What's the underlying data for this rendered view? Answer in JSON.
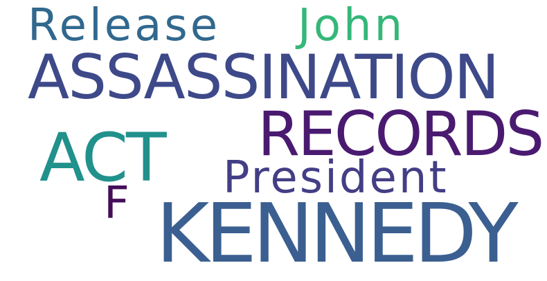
{
  "word_cloud": {
    "background": "#ffffff",
    "words": {
      "release": {
        "text": "Release",
        "color": "#31688e"
      },
      "john": {
        "text": "John",
        "color": "#35b779"
      },
      "assassination": {
        "text": "ASSASSINATION",
        "color": "#3e4989"
      },
      "records": {
        "text": "RECORDS",
        "color": "#4a1a70"
      },
      "act": {
        "text": "ACT",
        "color": "#21918c"
      },
      "president": {
        "text": "President",
        "color": "#433e85"
      },
      "f": {
        "text": "F",
        "color": "#440d59"
      },
      "kennedy": {
        "text": "KENNEDY",
        "color": "#3b5f90"
      }
    }
  }
}
